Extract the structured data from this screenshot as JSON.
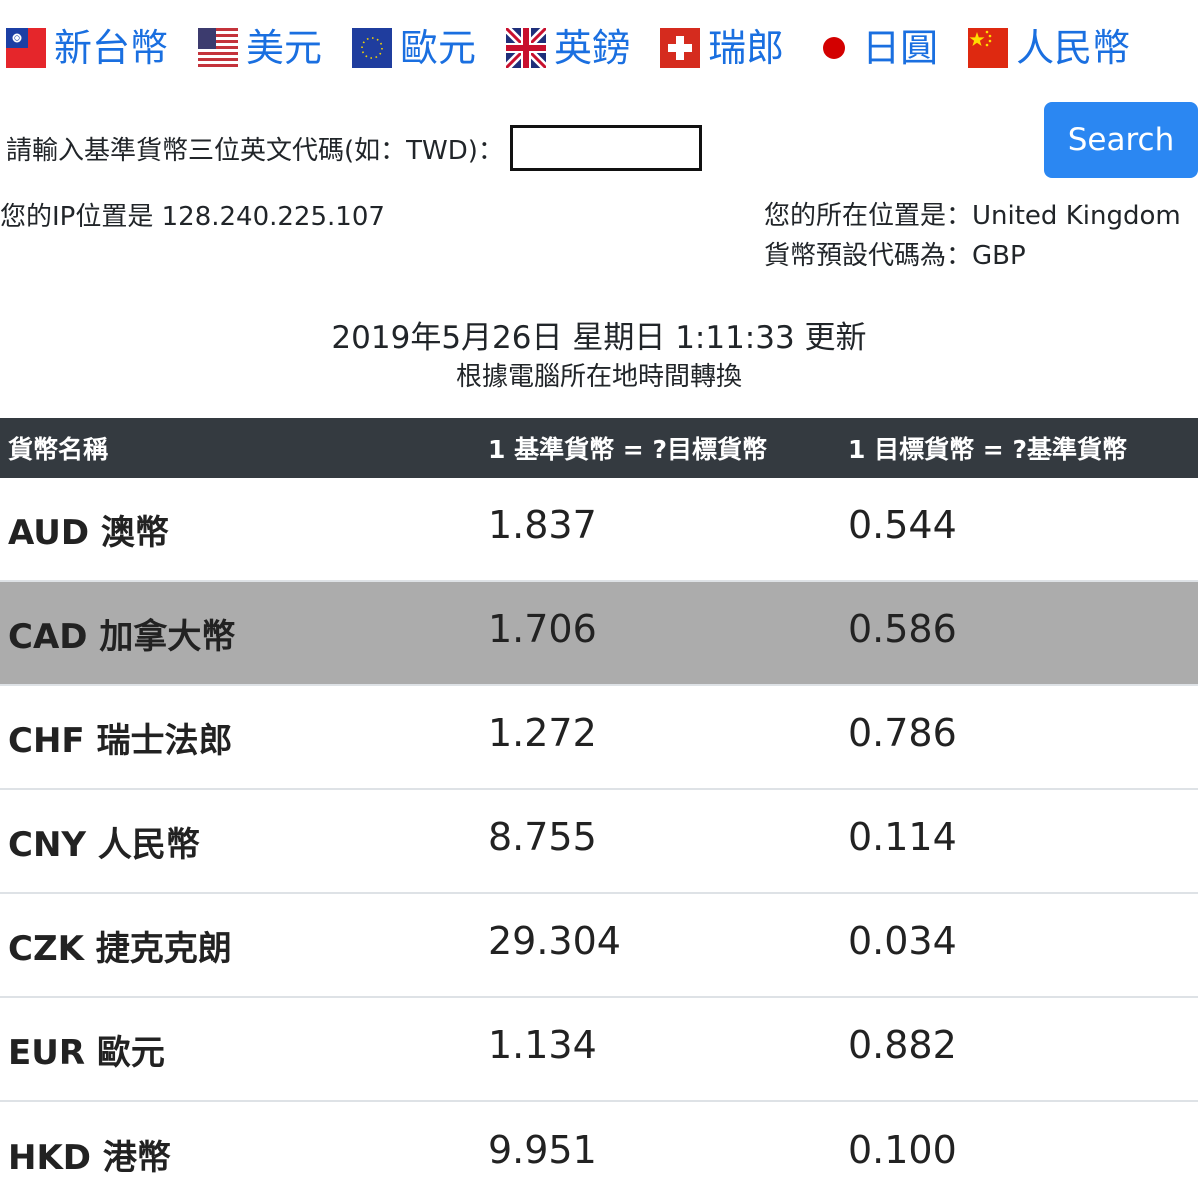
{
  "nav": {
    "items": [
      {
        "label": "新台幣",
        "flag": "taiwan-flag-icon"
      },
      {
        "label": "美元",
        "flag": "usa-flag-icon"
      },
      {
        "label": "歐元",
        "flag": "eu-flag-icon"
      },
      {
        "label": "英鎊",
        "flag": "uk-flag-icon"
      },
      {
        "label": "瑞郎",
        "flag": "swiss-flag-icon"
      },
      {
        "label": "日圓",
        "flag": "japan-flag-icon"
      },
      {
        "label": "人民幣",
        "flag": "china-flag-icon"
      }
    ]
  },
  "search": {
    "label": "請輸入基準貨幣三位英文代碼(如：TWD)：",
    "value": "",
    "placeholder": "",
    "button_label": "Search"
  },
  "info": {
    "ip_text": "您的IP位置是 128.240.225.107",
    "location_text": "您的所在位置是：United Kingdom",
    "default_code_text": "貨幣預設代碼為：GBP"
  },
  "update": {
    "timestamp_text": "2019年5月26日 星期日 1:11:33 更新",
    "note": "根據電腦所在地時間轉換"
  },
  "table": {
    "headers": [
      "貨幣名稱",
      "1 基準貨幣 = ?目標貨幣",
      "1 目標貨幣 = ?基準貨幣"
    ],
    "rows": [
      {
        "name": "AUD 澳幣",
        "base_to_target": "1.837",
        "target_to_base": "0.544"
      },
      {
        "name": "CAD 加拿大幣",
        "base_to_target": "1.706",
        "target_to_base": "0.586"
      },
      {
        "name": "CHF 瑞士法郎",
        "base_to_target": "1.272",
        "target_to_base": "0.786"
      },
      {
        "name": "CNY 人民幣",
        "base_to_target": "8.755",
        "target_to_base": "0.114"
      },
      {
        "name": "CZK 捷克克朗",
        "base_to_target": "29.304",
        "target_to_base": "0.034"
      },
      {
        "name": "EUR 歐元",
        "base_to_target": "1.134",
        "target_to_base": "0.882"
      },
      {
        "name": "HKD 港幣",
        "base_to_target": "9.951",
        "target_to_base": "0.100"
      }
    ]
  },
  "colors": {
    "link": "#1a6fe0",
    "button": "#2b87f2",
    "header_bg": "#343a40",
    "hover_row": "#acacac"
  }
}
